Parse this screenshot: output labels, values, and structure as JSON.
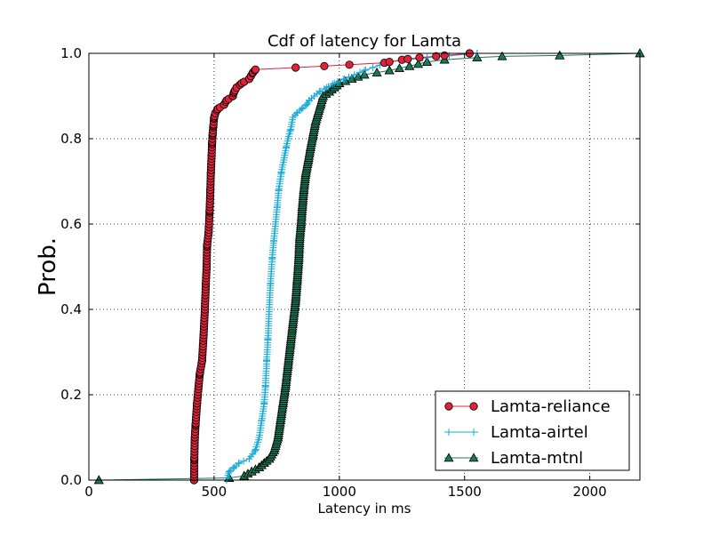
{
  "chart_data": {
    "type": "line",
    "title": "Cdf of latency for Lamta",
    "xlabel": "Latency in ms",
    "ylabel": "Prob.",
    "xlim": [
      0,
      2200
    ],
    "ylim": [
      0,
      1.0
    ],
    "xticks": [
      "0",
      "500",
      "1000",
      "1500",
      "2000"
    ],
    "yticks": [
      "0.0",
      "0.2",
      "0.4",
      "0.6",
      "0.8",
      "1.0"
    ],
    "grid": true,
    "legend_position": "lower-right",
    "series": [
      {
        "name": "Lamta-reliance",
        "color": "#e0233a",
        "marker": "circle",
        "anchors": [
          [
            420,
            0
          ],
          [
            421,
            0.05
          ],
          [
            423,
            0.1
          ],
          [
            426,
            0.13
          ],
          [
            432,
            0.18
          ],
          [
            438,
            0.22
          ],
          [
            443,
            0.25
          ],
          [
            452,
            0.28
          ],
          [
            458,
            0.34
          ],
          [
            463,
            0.4
          ],
          [
            467,
            0.46
          ],
          [
            470,
            0.5
          ],
          [
            472,
            0.55
          ],
          [
            478,
            0.58
          ],
          [
            482,
            0.63
          ],
          [
            485,
            0.68
          ],
          [
            487,
            0.72
          ],
          [
            490,
            0.76
          ],
          [
            492,
            0.79
          ],
          [
            494,
            0.81
          ],
          [
            497,
            0.83
          ],
          [
            500,
            0.85
          ],
          [
            505,
            0.86
          ],
          [
            515,
            0.87
          ],
          [
            540,
            0.88
          ],
          [
            550,
            0.89
          ],
          [
            575,
            0.9
          ],
          [
            580,
            0.91
          ],
          [
            590,
            0.92
          ],
          [
            610,
            0.93
          ],
          [
            640,
            0.94
          ],
          [
            655,
            0.955
          ],
          [
            665,
            0.962
          ],
          [
            940,
            0.97
          ],
          [
            1180,
            0.978
          ],
          [
            1250,
            0.985
          ],
          [
            1320,
            0.99
          ],
          [
            1420,
            0.995
          ],
          [
            1520,
            1.0
          ]
        ],
        "samples": 150
      },
      {
        "name": "Lamta-airtel",
        "color": "#1aa9d6",
        "marker": "plus",
        "anchors": [
          [
            550,
            0
          ],
          [
            560,
            0.02
          ],
          [
            580,
            0.03
          ],
          [
            600,
            0.04
          ],
          [
            640,
            0.05
          ],
          [
            665,
            0.07
          ],
          [
            680,
            0.1
          ],
          [
            690,
            0.14
          ],
          [
            700,
            0.18
          ],
          [
            705,
            0.22
          ],
          [
            710,
            0.28
          ],
          [
            715,
            0.33
          ],
          [
            720,
            0.4
          ],
          [
            725,
            0.46
          ],
          [
            732,
            0.52
          ],
          [
            738,
            0.56
          ],
          [
            745,
            0.6
          ],
          [
            752,
            0.64
          ],
          [
            758,
            0.68
          ],
          [
            768,
            0.72
          ],
          [
            778,
            0.75
          ],
          [
            788,
            0.78
          ],
          [
            795,
            0.8
          ],
          [
            805,
            0.82
          ],
          [
            815,
            0.85
          ],
          [
            830,
            0.86
          ],
          [
            850,
            0.87
          ],
          [
            870,
            0.88
          ],
          [
            880,
            0.89
          ],
          [
            900,
            0.9
          ],
          [
            920,
            0.91
          ],
          [
            950,
            0.92
          ],
          [
            980,
            0.93
          ],
          [
            1020,
            0.94
          ],
          [
            1100,
            0.96
          ],
          [
            1200,
            0.98
          ],
          [
            1350,
            0.99
          ],
          [
            1550,
            1.0
          ]
        ],
        "samples": 180
      },
      {
        "name": "Lamta-mtnl",
        "color": "#1b7a56",
        "marker": "triangle",
        "anchors": [
          [
            40,
            0
          ],
          [
            560,
            0.005
          ],
          [
            620,
            0.01
          ],
          [
            650,
            0.02
          ],
          [
            680,
            0.03
          ],
          [
            700,
            0.04
          ],
          [
            720,
            0.05
          ],
          [
            740,
            0.07
          ],
          [
            755,
            0.1
          ],
          [
            765,
            0.14
          ],
          [
            775,
            0.18
          ],
          [
            785,
            0.22
          ],
          [
            795,
            0.27
          ],
          [
            805,
            0.32
          ],
          [
            815,
            0.37
          ],
          [
            825,
            0.42
          ],
          [
            832,
            0.47
          ],
          [
            838,
            0.52
          ],
          [
            842,
            0.57
          ],
          [
            847,
            0.6
          ],
          [
            852,
            0.64
          ],
          [
            858,
            0.68
          ],
          [
            866,
            0.72
          ],
          [
            876,
            0.75
          ],
          [
            885,
            0.78
          ],
          [
            895,
            0.81
          ],
          [
            905,
            0.84
          ],
          [
            915,
            0.86
          ],
          [
            925,
            0.88
          ],
          [
            935,
            0.9
          ],
          [
            960,
            0.91
          ],
          [
            980,
            0.92
          ],
          [
            1000,
            0.93
          ],
          [
            1050,
            0.94
          ],
          [
            1100,
            0.95
          ],
          [
            1200,
            0.96
          ],
          [
            1280,
            0.97
          ],
          [
            1350,
            0.98
          ],
          [
            1420,
            0.985
          ],
          [
            1550,
            0.99
          ],
          [
            1650,
            0.993
          ],
          [
            1880,
            0.995
          ],
          [
            2200,
            1.0
          ]
        ],
        "samples": 200
      }
    ]
  }
}
